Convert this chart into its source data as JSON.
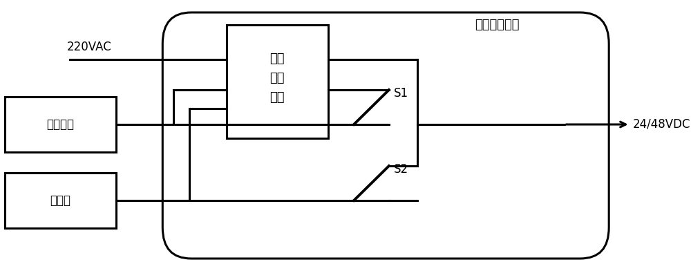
{
  "bg_color": "#ffffff",
  "line_color": "#000000",
  "text_color": "#000000",
  "label_220vac": "220VAC",
  "label_24_48vdc": "24/48VDC",
  "label_kaiguan": "开关电源",
  "label_dianchi": "电池组",
  "label_caiyang": "采样\n判断\n控制",
  "label_dianyuan": "电源管理模块",
  "label_s1": "S1",
  "label_s2": "S2",
  "fig_width": 10.0,
  "fig_height": 3.92,
  "dpi": 100
}
